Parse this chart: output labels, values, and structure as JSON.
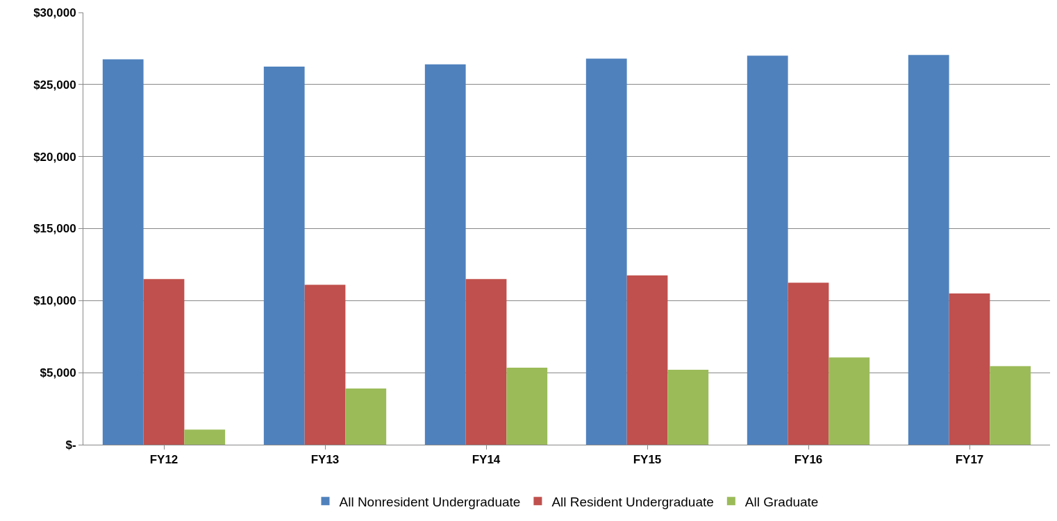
{
  "chart_data": {
    "type": "bar",
    "categories": [
      "FY12",
      "FY13",
      "FY14",
      "FY15",
      "FY16",
      "FY17"
    ],
    "series": [
      {
        "name": "All Nonresident Undergraduate",
        "color": "#4f81bd",
        "values": [
          26750,
          26250,
          26400,
          26800,
          27000,
          27050
        ]
      },
      {
        "name": "All Resident Undergraduate",
        "color": "#c0504d",
        "values": [
          11500,
          11100,
          11500,
          11750,
          11250,
          10500
        ]
      },
      {
        "name": "All Graduate",
        "color": "#9bbb59",
        "values": [
          1050,
          3900,
          5350,
          5200,
          6050,
          5450
        ]
      }
    ],
    "ylim": [
      0,
      30000
    ],
    "yticks": [
      {
        "value": 0,
        "label": "$-"
      },
      {
        "value": 5000,
        "label": "$5,000"
      },
      {
        "value": 10000,
        "label": "$10,000"
      },
      {
        "value": 15000,
        "label": "$15,000"
      },
      {
        "value": 20000,
        "label": "$20,000"
      },
      {
        "value": 25000,
        "label": "$25,000"
      },
      {
        "value": 30000,
        "label": "$30,000"
      }
    ],
    "grid": "y",
    "legend": "bottom"
  }
}
